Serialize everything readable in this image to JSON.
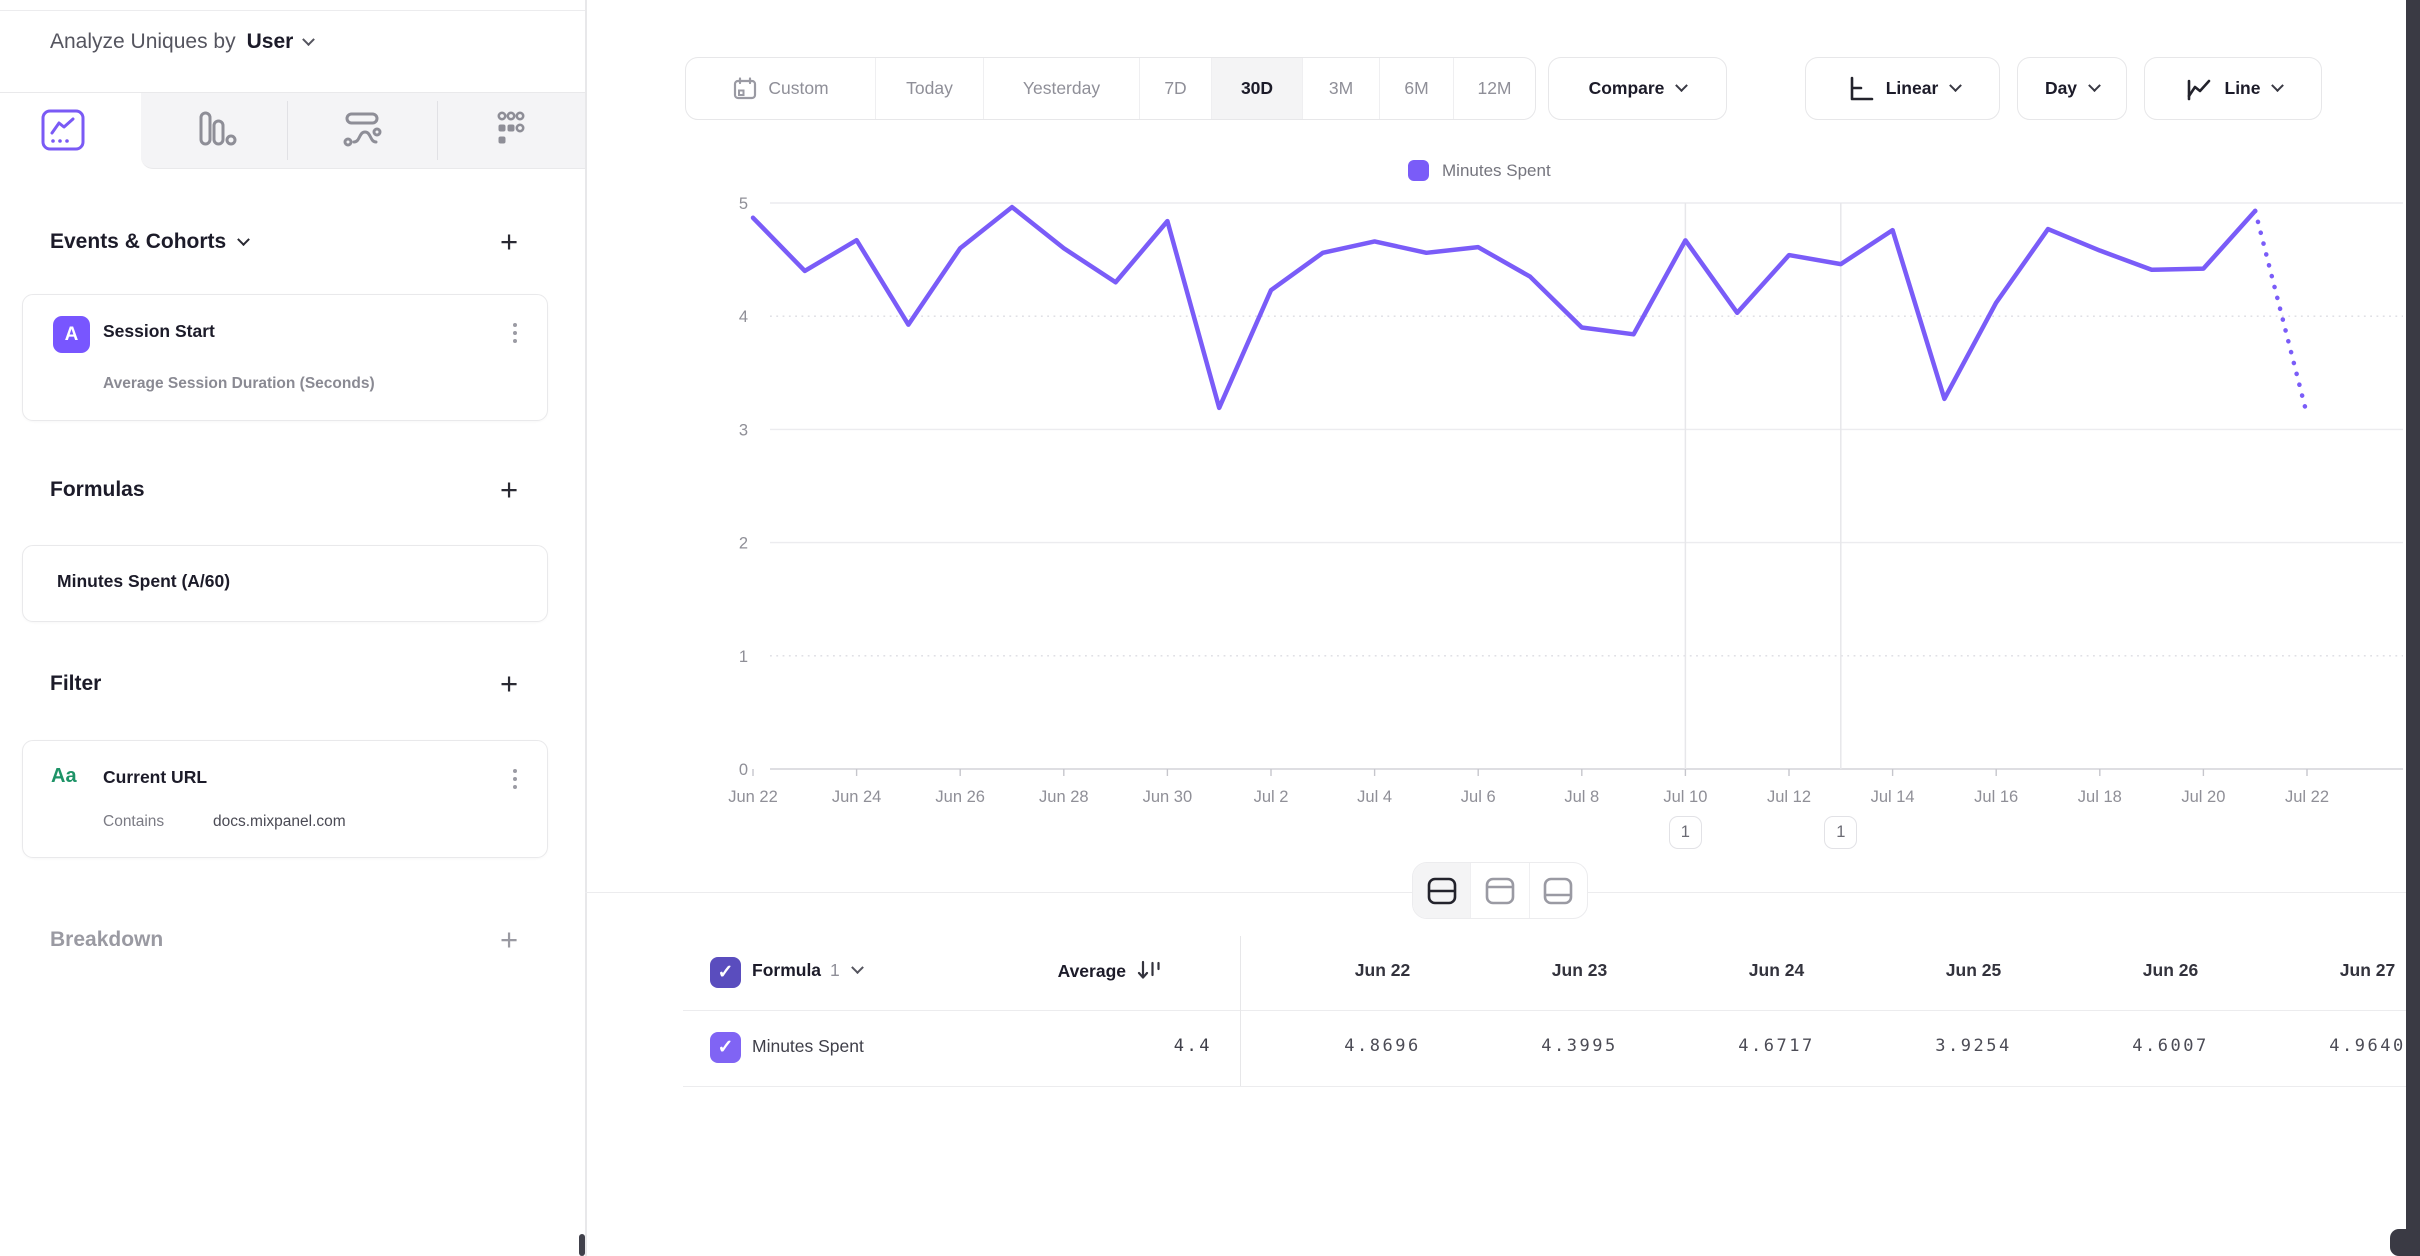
{
  "sidebar": {
    "analyze_label": "Analyze Uniques by",
    "analyze_value": "User",
    "events": {
      "header": "Events & Cohorts",
      "add": "+"
    },
    "event_card": {
      "badge": "A",
      "title": "Session Start",
      "subtitle": "Average Session Duration (Seconds)"
    },
    "formulas": {
      "header": "Formulas",
      "add": "+"
    },
    "formula_card": {
      "title": "Minutes Spent (A/60)"
    },
    "filter": {
      "header": "Filter",
      "add": "+"
    },
    "filter_card": {
      "badge": "Aa",
      "title": "Current URL",
      "operator": "Contains",
      "value": "docs.mixpanel.com"
    },
    "breakdown": {
      "header": "Breakdown",
      "add": "+"
    }
  },
  "toolbar": {
    "date_ranges": [
      "Custom",
      "Today",
      "Yesterday",
      "7D",
      "30D",
      "3M",
      "6M",
      "12M"
    ],
    "active_range": "30D",
    "compare_label": "Compare",
    "scale_label": "Linear",
    "granularity_label": "Day",
    "chart_type_label": "Line"
  },
  "chart_data": {
    "type": "line",
    "x": [
      "Jun 22",
      "Jun 23",
      "Jun 24",
      "Jun 25",
      "Jun 26",
      "Jun 27",
      "Jun 28",
      "Jun 29",
      "Jun 30",
      "Jul 1",
      "Jul 2",
      "Jul 3",
      "Jul 4",
      "Jul 5",
      "Jul 6",
      "Jul 7",
      "Jul 8",
      "Jul 9",
      "Jul 10",
      "Jul 11",
      "Jul 12",
      "Jul 13",
      "Jul 14",
      "Jul 15",
      "Jul 16",
      "Jul 17",
      "Jul 18",
      "Jul 19",
      "Jul 20",
      "Jul 21",
      "Jul 22"
    ],
    "series": [
      {
        "name": "Minutes Spent",
        "color": "#7a5cf8",
        "values": [
          4.8696,
          4.3995,
          4.6717,
          3.9254,
          4.6007,
          4.964,
          4.6,
          4.3,
          4.84,
          3.19,
          4.23,
          4.56,
          4.66,
          4.56,
          4.61,
          4.35,
          3.9,
          3.84,
          4.67,
          4.03,
          4.54,
          4.46,
          4.76,
          3.27,
          4.12,
          4.77,
          4.58,
          4.41,
          4.42,
          4.93,
          3.13
        ],
        "last_segment_dotted": true
      }
    ],
    "ylim": [
      0,
      5
    ],
    "yticks": [
      0,
      1,
      2,
      3,
      4,
      5
    ],
    "dotted_gridlines": [
      1,
      4
    ],
    "x_label_every": 2,
    "legend_position": "top",
    "annotations": [
      {
        "x_index": 18,
        "label": "1"
      },
      {
        "x_index": 21,
        "label": "1"
      }
    ]
  },
  "table": {
    "group_label": "Formula",
    "group_number": "1",
    "average_header": "Average",
    "columns": [
      "Jun 22",
      "Jun 23",
      "Jun 24",
      "Jun 25",
      "Jun 26",
      "Jun 27"
    ],
    "row": {
      "label": "Minutes Spent",
      "average": "4.4",
      "values": [
        "4.8696",
        "4.3995",
        "4.6717",
        "3.9254",
        "4.6007",
        "4.9640"
      ]
    }
  },
  "colors": {
    "accent": "#7856ff",
    "line": "#7a5cf8",
    "header_checkbox": "#5a4dbe",
    "row_checkbox": "#8064f4",
    "filter_badge_green": "#1e9367"
  }
}
